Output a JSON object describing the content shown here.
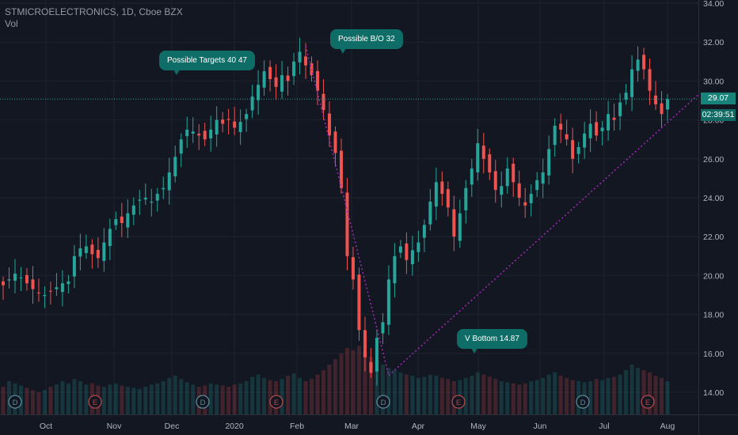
{
  "legend": {
    "symbol": "STMICROELECTRONICS, 1D, Cboe BZX",
    "volume": "Vol"
  },
  "annotations": {
    "possible_targets": "Possible Targets  40  47",
    "possible_bo": "Possible B/O 32",
    "v_bottom": "V Bottom  14.87"
  },
  "last_price": {
    "value": "29.07",
    "countdown": "02:39:51"
  },
  "colors": {
    "up": "#26a69a",
    "down": "#ef5350",
    "trendline": "#9c27b0",
    "dividend": "#5b8b9b",
    "earnings": "#b4484a",
    "annotation": "#0e6d67"
  },
  "chart_data": {
    "type": "candlestick",
    "title": "STMICROELECTRONICS, 1D, Cboe BZX",
    "ylim": [
      13.4,
      34.0
    ],
    "y_ticks": [
      "14.00",
      "16.00",
      "18.00",
      "20.00",
      "22.00",
      "24.00",
      "26.00",
      "28.00",
      "30.00",
      "32.00",
      "34.00"
    ],
    "x_ticks": [
      "Oct",
      "Nov",
      "Dec",
      "2020",
      "Feb",
      "Mar",
      "Apr",
      "May",
      "Jun",
      "Jul",
      "Aug"
    ],
    "series": [
      {
        "name": "Price",
        "closes": [
          19.5,
          19.8,
          20.1,
          19.9,
          19.6,
          19.3,
          19.1,
          19.0,
          19.2,
          19.4,
          19.6,
          19.7,
          21.0,
          21.4,
          21.5,
          21.1,
          20.9,
          21.7,
          22.4,
          22.9,
          22.7,
          23.2,
          23.6,
          23.9,
          24.0,
          23.8,
          24.2,
          24.5,
          25.3,
          26.1,
          27.0,
          27.5,
          27.4,
          27.2,
          27.0,
          27.5,
          28.0,
          27.8,
          28.0,
          27.6,
          27.9,
          28.3,
          29.2,
          29.8,
          30.5,
          30.1,
          29.7,
          30.3,
          30.0,
          31.0,
          31.5,
          30.8,
          30.3,
          29.5,
          28.5,
          27.2,
          26.3,
          24.5,
          21.0,
          19.8,
          17.2,
          15.8,
          15.0,
          16.8,
          17.6,
          19.8,
          21.0,
          21.5,
          20.8,
          21.3,
          21.7,
          22.6,
          23.8,
          24.8,
          24.2,
          23.5,
          22.0,
          23.2,
          24.5,
          25.5,
          26.8,
          26.0,
          25.3,
          24.4,
          24.6,
          25.5,
          24.8,
          24.0,
          23.6,
          24.2,
          24.9,
          25.3,
          26.5,
          27.7,
          27.5,
          27.0,
          26.0,
          26.6,
          27.3,
          27.8,
          27.2,
          27.6,
          28.3,
          28.0,
          28.9,
          29.4,
          30.6,
          31.1,
          30.6,
          29.5,
          28.8,
          28.3,
          29.07
        ],
        "volumes_m": [
          0.25,
          0.3,
          0.28,
          0.26,
          0.24,
          0.22,
          0.2,
          0.22,
          0.25,
          0.27,
          0.3,
          0.28,
          0.32,
          0.3,
          0.27,
          0.28,
          0.26,
          0.25,
          0.27,
          0.28,
          0.26,
          0.25,
          0.24,
          0.23,
          0.25,
          0.27,
          0.28,
          0.3,
          0.33,
          0.35,
          0.32,
          0.29,
          0.27,
          0.25,
          0.26,
          0.28,
          0.27,
          0.26,
          0.25,
          0.27,
          0.28,
          0.3,
          0.34,
          0.36,
          0.33,
          0.31,
          0.3,
          0.32,
          0.35,
          0.37,
          0.33,
          0.3,
          0.32,
          0.36,
          0.4,
          0.45,
          0.5,
          0.55,
          0.6,
          0.58,
          0.62,
          0.56,
          0.52,
          0.48,
          0.45,
          0.42,
          0.4,
          0.38,
          0.36,
          0.35,
          0.33,
          0.34,
          0.36,
          0.35,
          0.33,
          0.32,
          0.3,
          0.31,
          0.33,
          0.35,
          0.38,
          0.36,
          0.34,
          0.32,
          0.3,
          0.29,
          0.28,
          0.27,
          0.28,
          0.3,
          0.31,
          0.33,
          0.36,
          0.38,
          0.35,
          0.33,
          0.31,
          0.3,
          0.29,
          0.3,
          0.32,
          0.31,
          0.33,
          0.34,
          0.36,
          0.4,
          0.45,
          0.42,
          0.4,
          0.38,
          0.35,
          0.33,
          0.3
        ]
      }
    ],
    "trendlines": [
      {
        "from": [
          "2020-02-04",
          31.8
        ],
        "to": [
          "2020-03-16",
          14.87
        ]
      },
      {
        "from": [
          "2020-03-16",
          14.87
        ],
        "to": [
          "2020-08-07",
          29.3
        ]
      }
    ],
    "horizontal_line": 29.07,
    "events": [
      "D",
      "E",
      "D",
      "E",
      "D",
      "E",
      "D",
      "E"
    ],
    "grid": true
  }
}
